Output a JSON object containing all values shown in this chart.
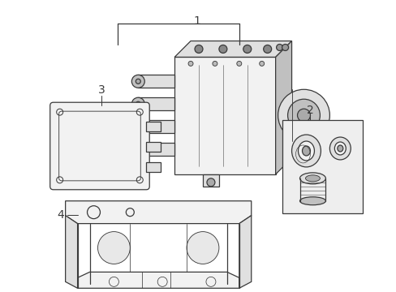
{
  "bg_color": "#ffffff",
  "line_color": "#3a3a3a",
  "line_width": 0.9,
  "fig_width": 4.89,
  "fig_height": 3.6,
  "dpi": 100,
  "label_fontsize": 10
}
